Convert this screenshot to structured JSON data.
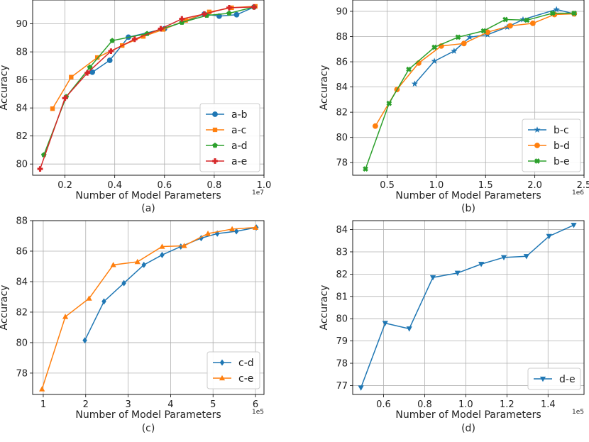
{
  "chart_data": [
    {
      "type": "line",
      "caption": "(a)",
      "xlabel": "Number of Model Parameters",
      "ylabel": "Accuracy",
      "x_scale_label": "1e7",
      "xlim": [
        0.07,
        1.0
      ],
      "ylim": [
        79.2,
        91.7
      ],
      "xticks": [
        0.2,
        0.4,
        0.6,
        0.8,
        1.0
      ],
      "xtick_labels": [
        "0.2",
        "0.4",
        "0.6",
        "0.8",
        "1.0"
      ],
      "yticks": [
        80,
        82,
        84,
        86,
        88,
        90
      ],
      "ytick_labels": [
        "80",
        "82",
        "84",
        "86",
        "88",
        "90"
      ],
      "grid": true,
      "legend_position": "lower-right",
      "series": [
        {
          "name": "a-b",
          "color": "#1f77b4",
          "marker": "circle",
          "x": [
            0.31,
            0.38,
            0.455,
            0.6,
            0.76,
            0.82,
            0.89,
            0.96
          ],
          "y": [
            86.55,
            87.4,
            89.05,
            89.65,
            90.7,
            90.55,
            90.65,
            91.2
          ]
        },
        {
          "name": "a-c",
          "color": "#ff7f0e",
          "marker": "square",
          "x": [
            0.15,
            0.225,
            0.33,
            0.43,
            0.515,
            0.595,
            0.685,
            0.78,
            0.87,
            0.965
          ],
          "y": [
            83.95,
            86.2,
            87.6,
            88.45,
            89.1,
            89.6,
            90.25,
            90.85,
            91.15,
            91.25
          ]
        },
        {
          "name": "a-d",
          "color": "#2ca02c",
          "marker": "pentagon",
          "x": [
            0.115,
            0.205,
            0.3,
            0.39,
            0.53,
            0.67,
            0.77,
            0.86,
            0.96
          ],
          "y": [
            80.65,
            84.8,
            86.9,
            88.8,
            89.3,
            90.1,
            90.6,
            90.75,
            91.2
          ]
        },
        {
          "name": "a-e",
          "color": "#d62728",
          "marker": "plus",
          "x": [
            0.1,
            0.2,
            0.29,
            0.385,
            0.48,
            0.585,
            0.67,
            0.76,
            0.86,
            0.96
          ],
          "y": [
            79.65,
            84.7,
            86.5,
            88.05,
            88.9,
            89.65,
            90.35,
            90.7,
            91.15,
            91.2
          ]
        }
      ]
    },
    {
      "type": "line",
      "caption": "(b)",
      "xlabel": "Number of Model Parameters",
      "ylabel": "Accuracy",
      "x_scale_label": "1e6",
      "xlim": [
        0.15,
        2.5
      ],
      "ylim": [
        77.0,
        90.9
      ],
      "xticks": [
        0.5,
        1.0,
        1.5,
        2.0,
        2.5
      ],
      "xtick_labels": [
        "0.5",
        "1.0",
        "1.5",
        "2.0",
        "2.5"
      ],
      "yticks": [
        78,
        80,
        82,
        84,
        86,
        88,
        90
      ],
      "ytick_labels": [
        "78",
        "80",
        "82",
        "84",
        "86",
        "88",
        "90"
      ],
      "grid": true,
      "legend_position": "lower-right",
      "series": [
        {
          "name": "b-c",
          "color": "#1f77b4",
          "marker": "star",
          "x": [
            0.78,
            0.98,
            1.18,
            1.34,
            1.52,
            1.72,
            1.88,
            2.22,
            2.4
          ],
          "y": [
            84.25,
            86.05,
            86.85,
            87.95,
            88.15,
            88.75,
            89.35,
            90.15,
            89.8
          ]
        },
        {
          "name": "b-d",
          "color": "#ff7f0e",
          "marker": "circle",
          "x": [
            0.38,
            0.6,
            0.82,
            1.05,
            1.28,
            1.52,
            1.75,
            1.98,
            2.2,
            2.4
          ],
          "y": [
            80.9,
            83.8,
            85.9,
            87.25,
            87.45,
            88.35,
            88.85,
            89.05,
            89.75,
            89.8
          ]
        },
        {
          "name": "b-e",
          "color": "#2ca02c",
          "marker": "cross",
          "x": [
            0.28,
            0.52,
            0.72,
            0.98,
            1.22,
            1.48,
            1.7,
            1.92,
            2.18,
            2.4
          ],
          "y": [
            77.5,
            82.7,
            85.4,
            87.15,
            87.95,
            88.45,
            89.35,
            89.3,
            89.85,
            89.85
          ]
        }
      ]
    },
    {
      "type": "line",
      "caption": "(c)",
      "xlabel": "Number of Model Parameters",
      "ylabel": "Accuracy",
      "x_scale_label": "1e5",
      "xlim": [
        0.75,
        6.2
      ],
      "ylim": [
        76.6,
        88.0
      ],
      "xticks": [
        1,
        2,
        3,
        4,
        5,
        6
      ],
      "xtick_labels": [
        "1",
        "2",
        "3",
        "4",
        "5",
        "6"
      ],
      "yticks": [
        78,
        80,
        82,
        84,
        86,
        88
      ],
      "ytick_labels": [
        "78",
        "80",
        "82",
        "84",
        "86",
        "88"
      ],
      "grid": true,
      "legend_position": "lower-right",
      "series": [
        {
          "name": "c-d",
          "color": "#1f77b4",
          "marker": "diamond",
          "x": [
            1.98,
            2.43,
            2.9,
            3.37,
            3.8,
            4.24,
            4.72,
            5.1,
            5.55,
            6.02
          ],
          "y": [
            80.15,
            82.7,
            83.9,
            85.1,
            85.75,
            86.3,
            86.85,
            87.15,
            87.3,
            87.55
          ]
        },
        {
          "name": "c-e",
          "color": "#ff7f0e",
          "marker": "triangle-up",
          "x": [
            0.97,
            1.52,
            2.08,
            2.65,
            3.22,
            3.8,
            4.32,
            4.88,
            5.45,
            6.0
          ],
          "y": [
            76.95,
            81.7,
            82.9,
            85.1,
            85.3,
            86.3,
            86.35,
            87.15,
            87.45,
            87.55
          ]
        }
      ]
    },
    {
      "type": "line",
      "caption": "(d)",
      "xlabel": "Number of Model Parameters",
      "ylabel": "Accuracy",
      "x_scale_label": "1e5",
      "xlim": [
        0.45,
        1.575
      ],
      "ylim": [
        76.6,
        84.4
      ],
      "xticks": [
        0.6,
        0.8,
        1.0,
        1.2,
        1.4
      ],
      "xtick_labels": [
        "0.6",
        "0.8",
        "1.0",
        "1.2",
        "1.4"
      ],
      "yticks": [
        77,
        78,
        79,
        80,
        81,
        82,
        83,
        84
      ],
      "ytick_labels": [
        "77",
        "78",
        "79",
        "80",
        "81",
        "82",
        "83",
        "84"
      ],
      "grid": true,
      "legend_position": "lower-right",
      "series": [
        {
          "name": "d-e",
          "color": "#1f77b4",
          "marker": "triangle-down",
          "x": [
            0.49,
            0.608,
            0.725,
            0.84,
            0.96,
            1.075,
            1.185,
            1.295,
            1.405,
            1.525
          ],
          "y": [
            76.9,
            79.8,
            79.55,
            81.85,
            82.05,
            82.45,
            82.75,
            82.8,
            83.7,
            84.2
          ]
        }
      ]
    }
  ]
}
